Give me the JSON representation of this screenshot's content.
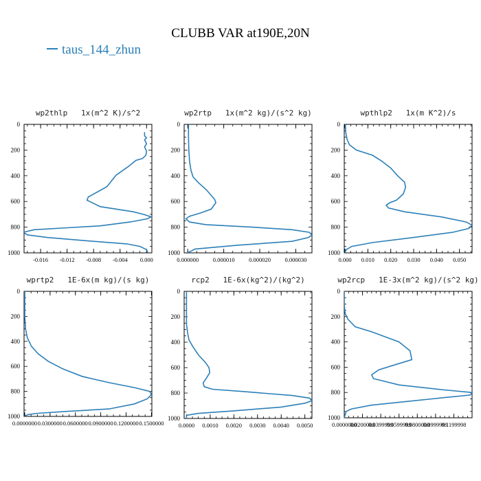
{
  "figure": {
    "title": "CLUBB VAR at190E,20N",
    "legend": {
      "label": "taus_144_zhun",
      "color": "#2c7fb8",
      "placement": "top-left"
    }
  },
  "chart_data": [
    {
      "type": "line",
      "title": "wp2thlp   1x(m^2 K)/s^2",
      "xlim": [
        -0.0185,
        0.0008
      ],
      "ylim": [
        1000,
        0
      ],
      "xticks": [
        "-0.016",
        "-0.012",
        "-0.008",
        "-0.004",
        "0.000"
      ],
      "xtick_values": [
        -0.016,
        -0.012,
        -0.008,
        -0.004,
        0.0
      ],
      "yticks": [
        "0",
        "200",
        "400",
        "600",
        "800",
        "1000"
      ],
      "series": [
        {
          "x": [
            -0.0003,
            -0.0003,
            0.0,
            -0.0003,
            0.0,
            -0.0003,
            0.0,
            -0.0001,
            -0.0006,
            -0.0016,
            -0.0028,
            -0.0046,
            -0.006,
            -0.0088,
            -0.009,
            -0.007,
            -0.002,
            -0.0005,
            0.0007,
            0.0001,
            -0.0025,
            -0.007,
            -0.012,
            -0.017,
            -0.0186,
            -0.018,
            -0.015,
            -0.008,
            -0.003,
            -0.001,
            0.0,
            0.0002
          ],
          "y": [
            60,
            90,
            105,
            120,
            150,
            175,
            210,
            240,
            265,
            280,
            330,
            395,
            485,
            565,
            590,
            640,
            680,
            700,
            720,
            735,
            760,
            790,
            805,
            820,
            840,
            860,
            880,
            910,
            930,
            950,
            975,
            1000
          ]
        }
      ]
    },
    {
      "type": "line",
      "title": "wp2rtp   1x(m^2 kg)/(s^2 kg)",
      "xlim": [
        -1e-06,
        3.45e-05
      ],
      "ylim": [
        1000,
        0
      ],
      "xticks": [
        "0.000000",
        "0.000010",
        "0.000020",
        "0.000030"
      ],
      "xtick_values": [
        0.0,
        1e-05,
        2e-05,
        3e-05
      ],
      "yticks": [
        "0",
        "200",
        "400",
        "600",
        "800",
        "1000"
      ],
      "series": [
        {
          "x": [
            2e-07,
            2e-07,
            3e-07,
            5e-07,
            9e-07,
            1.5e-06,
            3e-06,
            5.2e-06,
            7.5e-06,
            7.8e-06,
            6.5e-06,
            3.5e-06,
            5e-07,
            -5e-07,
            5e-07,
            5e-06,
            1.8e-05,
            2.9e-05,
            3.38e-05,
            3.45e-05,
            3.35e-05,
            2.9e-05,
            1.4e-05,
            2e-06,
            0.0
          ],
          "y": [
            0,
            100,
            200,
            290,
            360,
            410,
            455,
            510,
            585,
            610,
            660,
            690,
            715,
            735,
            760,
            780,
            800,
            820,
            840,
            862,
            880,
            910,
            940,
            970,
            1000
          ]
        }
      ]
    },
    {
      "type": "line",
      "title": "wpthlp2   1x(m K^2)/s",
      "xlim": [
        -0.0003,
        0.0555
      ],
      "ylim": [
        1000,
        0
      ],
      "xticks": [
        "0.000",
        "0.010",
        "0.020",
        "0.030",
        "0.040",
        "0.050"
      ],
      "xtick_values": [
        0.0,
        0.01,
        0.02,
        0.03,
        0.04,
        0.05
      ],
      "yticks": [
        "0",
        "200",
        "400",
        "600",
        "800",
        "1000"
      ],
      "series": [
        {
          "x": [
            0.0002,
            0.0003,
            0.001,
            0.002,
            0.005,
            0.012,
            0.016,
            0.02,
            0.023,
            0.026,
            0.0265,
            0.0255,
            0.0225,
            0.0195,
            0.018,
            0.019,
            0.026,
            0.042,
            0.053,
            0.0555,
            0.054,
            0.047,
            0.03,
            0.012,
            0.003,
            0.0005,
            0.0
          ],
          "y": [
            0,
            60,
            120,
            160,
            200,
            240,
            285,
            340,
            400,
            450,
            490,
            540,
            590,
            610,
            630,
            650,
            680,
            720,
            760,
            785,
            810,
            840,
            880,
            920,
            950,
            975,
            1000
          ]
        }
      ]
    },
    {
      "type": "line",
      "title": "wprtp2   1E-6x(m kg)/(s kg)",
      "xlim": [
        -0.0008,
        0.1505
      ],
      "ylim": [
        1000,
        0
      ],
      "xticks": [
        "0.0000000",
        "0.0300000",
        "0.0600000",
        "0.0900000",
        "0.1200000",
        "0.1500000"
      ],
      "xtick_values": [
        0.0,
        0.03,
        0.06,
        0.09,
        0.12,
        0.15
      ],
      "yticks": [
        "0",
        "200",
        "400",
        "600",
        "800",
        "1000"
      ],
      "series": [
        {
          "x": [
            0.0,
            0.0,
            0.001,
            0.003,
            0.008,
            0.016,
            0.028,
            0.045,
            0.068,
            0.1,
            0.13,
            0.148,
            0.15,
            0.145,
            0.13,
            0.1,
            0.05,
            0.015,
            0.004,
            0.0005,
            0.0
          ],
          "y": [
            0,
            200,
            300,
            370,
            440,
            500,
            560,
            620,
            680,
            730,
            770,
            800,
            825,
            860,
            900,
            940,
            960,
            975,
            985,
            995,
            1000
          ]
        }
      ]
    },
    {
      "type": "line",
      "title": "rcp2   1E-6x(kg^2)/(kg^2)",
      "xlim": [
        -0.0001,
        0.0053
      ],
      "ylim": [
        1000,
        0
      ],
      "xticks": [
        "0.0000",
        "0.0010",
        "0.0020",
        "0.0030",
        "0.0040",
        "0.0050"
      ],
      "xtick_values": [
        0.0,
        0.001,
        0.002,
        0.003,
        0.004,
        0.005
      ],
      "yticks": [
        "0",
        "200",
        "400",
        "600",
        "800",
        "1000"
      ],
      "series": [
        {
          "x": [
            0.0,
            0.0,
            0.0,
            5e-05,
            0.0001,
            0.00025,
            0.0005,
            0.0008,
            0.00095,
            0.00098,
            0.00085,
            0.0007,
            0.00075,
            0.0011,
            0.0025,
            0.0045,
            0.0052,
            0.0053,
            0.005,
            0.004,
            0.002,
            0.0005,
            0.0,
            0.0
          ],
          "y": [
            0,
            150,
            260,
            330,
            380,
            430,
            500,
            560,
            600,
            640,
            680,
            720,
            750,
            770,
            790,
            820,
            840,
            860,
            880,
            910,
            940,
            960,
            975,
            1000
          ]
        }
      ]
    },
    {
      "type": "line",
      "title": "wp2rcp   1E-3x(m^2 kg)/(s^2 kg)",
      "xlim": [
        0.0,
        0.14
      ],
      "ylim": [
        1000,
        0
      ],
      "xticks": [
        "0.0000000",
        "0.0200000",
        "0.0399999",
        "0.0599999",
        "0.0800000",
        "0.0999999",
        "0.1199998"
      ],
      "xtick_values": [
        0.0,
        0.02,
        0.04,
        0.06,
        0.08,
        0.1,
        0.12
      ],
      "yticks": [
        "0",
        "200",
        "400",
        "600",
        "800",
        "1000"
      ],
      "series": [
        {
          "x": [
            0.0,
            0.0,
            0.001,
            0.004,
            0.012,
            0.03,
            0.045,
            0.06,
            0.072,
            0.074,
            0.056,
            0.038,
            0.03,
            0.032,
            0.06,
            0.11,
            0.14,
            0.138,
            0.11,
            0.07,
            0.03,
            0.008,
            0.002,
            0.0
          ],
          "y": [
            0,
            110,
            175,
            220,
            280,
            320,
            360,
            400,
            470,
            540,
            580,
            620,
            660,
            690,
            740,
            780,
            800,
            820,
            840,
            870,
            900,
            930,
            950,
            1000
          ]
        }
      ]
    }
  ]
}
